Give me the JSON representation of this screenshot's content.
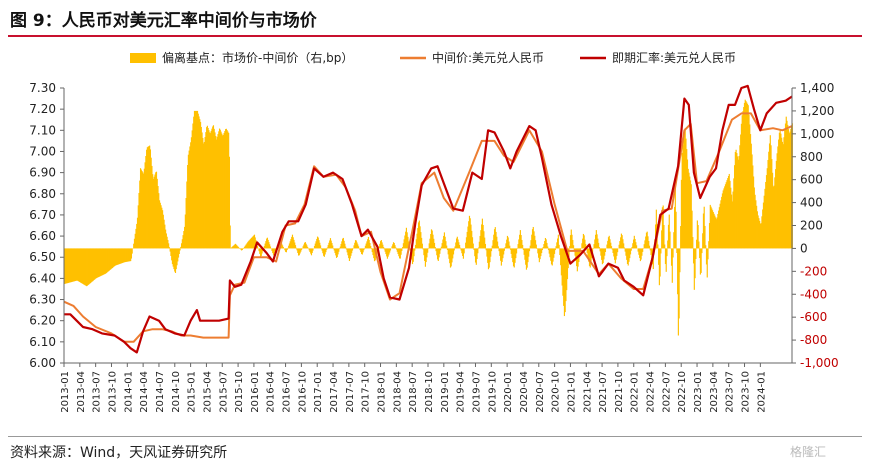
{
  "page": {
    "title": "图 9：人民币对美元汇率中间价与市场价",
    "source": "资料来源：Wind，天风证券研究所",
    "watermark": "格隆汇"
  },
  "colors": {
    "bar": "#FFC000",
    "mid": "#ED7D31",
    "spot": "#C00000",
    "neg_tick": "#C00000",
    "rule": "#C8102E"
  },
  "chart_data": {
    "type": "bar+line",
    "legend": [
      "偏离基点：市场价-中间价（右,bp）",
      "中间价:美元兑人民币",
      "即期汇率:美元兑人民币"
    ],
    "legend_position": "top",
    "y_left": {
      "min": 6.0,
      "max": 7.3,
      "ticks": [
        "6.00",
        "6.10",
        "6.20",
        "6.30",
        "6.40",
        "6.50",
        "6.60",
        "6.70",
        "6.80",
        "6.90",
        "7.00",
        "7.10",
        "7.20",
        "7.30"
      ]
    },
    "y_right": {
      "min": -1000,
      "max": 1400,
      "ticks": [
        "-1,000",
        "-800",
        "-600",
        "-400",
        "-200",
        "0",
        "200",
        "400",
        "600",
        "800",
        "1,000",
        "1,200",
        "1,400"
      ]
    },
    "x_ticks": [
      "2013-01",
      "2013-04",
      "2013-07",
      "2013-10",
      "2014-01",
      "2014-04",
      "2014-07",
      "2014-10",
      "2015-01",
      "2015-04",
      "2015-07",
      "2015-10",
      "2016-01",
      "2016-04",
      "2016-07",
      "2016-10",
      "2017-01",
      "2017-04",
      "2017-07",
      "2017-10",
      "2018-01",
      "2018-04",
      "2018-07",
      "2018-10",
      "2019-01",
      "2019-04",
      "2019-07",
      "2019-10",
      "2020-01",
      "2020-04",
      "2020-07",
      "2020-10",
      "2021-01",
      "2021-04",
      "2021-07",
      "2021-10",
      "2022-01",
      "2022-04",
      "2022-07",
      "2022-10",
      "2023-01",
      "2023-04",
      "2023-07",
      "2023-10",
      "2024-01"
    ],
    "x_range": [
      2013.0,
      2024.5
    ],
    "spot": [
      [
        2013.0,
        6.23
      ],
      [
        2013.1,
        6.23
      ],
      [
        2013.2,
        6.2
      ],
      [
        2013.3,
        6.17
      ],
      [
        2013.45,
        6.16
      ],
      [
        2013.6,
        6.14
      ],
      [
        2013.8,
        6.13
      ],
      [
        2013.95,
        6.1
      ],
      [
        2014.05,
        6.07
      ],
      [
        2014.15,
        6.05
      ],
      [
        2014.25,
        6.15
      ],
      [
        2014.35,
        6.22
      ],
      [
        2014.5,
        6.2
      ],
      [
        2014.6,
        6.16
      ],
      [
        2014.75,
        6.14
      ],
      [
        2014.9,
        6.13
      ],
      [
        2015.0,
        6.2
      ],
      [
        2015.1,
        6.25
      ],
      [
        2015.15,
        6.2
      ],
      [
        2015.3,
        6.2
      ],
      [
        2015.45,
        6.2
      ],
      [
        2015.6,
        6.21
      ],
      [
        2015.62,
        6.39
      ],
      [
        2015.7,
        6.36
      ],
      [
        2015.8,
        6.37
      ],
      [
        2015.95,
        6.48
      ],
      [
        2016.05,
        6.57
      ],
      [
        2016.2,
        6.52
      ],
      [
        2016.3,
        6.48
      ],
      [
        2016.45,
        6.62
      ],
      [
        2016.55,
        6.67
      ],
      [
        2016.7,
        6.67
      ],
      [
        2016.82,
        6.75
      ],
      [
        2016.95,
        6.92
      ],
      [
        2017.1,
        6.88
      ],
      [
        2017.25,
        6.9
      ],
      [
        2017.4,
        6.87
      ],
      [
        2017.55,
        6.75
      ],
      [
        2017.7,
        6.6
      ],
      [
        2017.8,
        6.63
      ],
      [
        2017.95,
        6.55
      ],
      [
        2018.05,
        6.4
      ],
      [
        2018.15,
        6.31
      ],
      [
        2018.3,
        6.3
      ],
      [
        2018.45,
        6.45
      ],
      [
        2018.55,
        6.66
      ],
      [
        2018.65,
        6.84
      ],
      [
        2018.8,
        6.92
      ],
      [
        2018.9,
        6.93
      ],
      [
        2019.0,
        6.85
      ],
      [
        2019.15,
        6.73
      ],
      [
        2019.3,
        6.72
      ],
      [
        2019.45,
        6.9
      ],
      [
        2019.6,
        6.87
      ],
      [
        2019.7,
        7.1
      ],
      [
        2019.8,
        7.09
      ],
      [
        2019.95,
        7.0
      ],
      [
        2020.05,
        6.92
      ],
      [
        2020.15,
        7.0
      ],
      [
        2020.35,
        7.12
      ],
      [
        2020.45,
        7.1
      ],
      [
        2020.55,
        6.97
      ],
      [
        2020.7,
        6.75
      ],
      [
        2020.85,
        6.6
      ],
      [
        2021.0,
        6.47
      ],
      [
        2021.15,
        6.51
      ],
      [
        2021.3,
        6.56
      ],
      [
        2021.45,
        6.41
      ],
      [
        2021.6,
        6.47
      ],
      [
        2021.75,
        6.45
      ],
      [
        2021.85,
        6.39
      ],
      [
        2022.0,
        6.36
      ],
      [
        2022.15,
        6.32
      ],
      [
        2022.3,
        6.5
      ],
      [
        2022.42,
        6.7
      ],
      [
        2022.55,
        6.73
      ],
      [
        2022.7,
        6.93
      ],
      [
        2022.8,
        7.25
      ],
      [
        2022.87,
        7.22
      ],
      [
        2022.95,
        6.9
      ],
      [
        2023.05,
        6.78
      ],
      [
        2023.2,
        6.88
      ],
      [
        2023.3,
        6.92
      ],
      [
        2023.4,
        7.1
      ],
      [
        2023.5,
        7.22
      ],
      [
        2023.6,
        7.22
      ],
      [
        2023.7,
        7.3
      ],
      [
        2023.8,
        7.31
      ],
      [
        2023.9,
        7.2
      ],
      [
        2024.0,
        7.1
      ],
      [
        2024.1,
        7.18
      ],
      [
        2024.25,
        7.23
      ],
      [
        2024.4,
        7.24
      ],
      [
        2024.5,
        7.26
      ]
    ],
    "mid": [
      [
        2013.0,
        6.29
      ],
      [
        2013.15,
        6.27
      ],
      [
        2013.3,
        6.22
      ],
      [
        2013.5,
        6.17
      ],
      [
        2013.75,
        6.14
      ],
      [
        2013.95,
        6.1
      ],
      [
        2014.1,
        6.1
      ],
      [
        2014.25,
        6.15
      ],
      [
        2014.4,
        6.16
      ],
      [
        2014.55,
        6.16
      ],
      [
        2014.7,
        6.15
      ],
      [
        2014.85,
        6.13
      ],
      [
        2015.0,
        6.13
      ],
      [
        2015.2,
        6.12
      ],
      [
        2015.4,
        6.12
      ],
      [
        2015.6,
        6.12
      ],
      [
        2015.62,
        6.32
      ],
      [
        2015.7,
        6.37
      ],
      [
        2015.85,
        6.38
      ],
      [
        2016.0,
        6.5
      ],
      [
        2016.2,
        6.5
      ],
      [
        2016.35,
        6.48
      ],
      [
        2016.5,
        6.65
      ],
      [
        2016.65,
        6.66
      ],
      [
        2016.8,
        6.75
      ],
      [
        2016.95,
        6.93
      ],
      [
        2017.1,
        6.88
      ],
      [
        2017.3,
        6.89
      ],
      [
        2017.45,
        6.83
      ],
      [
        2017.6,
        6.72
      ],
      [
        2017.7,
        6.6
      ],
      [
        2017.85,
        6.62
      ],
      [
        2018.0,
        6.43
      ],
      [
        2018.15,
        6.3
      ],
      [
        2018.3,
        6.33
      ],
      [
        2018.5,
        6.62
      ],
      [
        2018.65,
        6.85
      ],
      [
        2018.85,
        6.9
      ],
      [
        2019.0,
        6.78
      ],
      [
        2019.15,
        6.72
      ],
      [
        2019.4,
        6.9
      ],
      [
        2019.6,
        7.05
      ],
      [
        2019.8,
        7.05
      ],
      [
        2019.95,
        6.98
      ],
      [
        2020.1,
        6.95
      ],
      [
        2020.35,
        7.1
      ],
      [
        2020.55,
        7.0
      ],
      [
        2020.75,
        6.75
      ],
      [
        2020.95,
        6.53
      ],
      [
        2021.2,
        6.53
      ],
      [
        2021.45,
        6.42
      ],
      [
        2021.6,
        6.47
      ],
      [
        2021.8,
        6.4
      ],
      [
        2022.0,
        6.35
      ],
      [
        2022.15,
        6.35
      ],
      [
        2022.3,
        6.5
      ],
      [
        2022.45,
        6.72
      ],
      [
        2022.6,
        6.73
      ],
      [
        2022.8,
        7.1
      ],
      [
        2022.9,
        7.13
      ],
      [
        2023.0,
        6.85
      ],
      [
        2023.15,
        6.86
      ],
      [
        2023.35,
        7.0
      ],
      [
        2023.55,
        7.15
      ],
      [
        2023.7,
        7.18
      ],
      [
        2023.85,
        7.18
      ],
      [
        2024.0,
        7.1
      ],
      [
        2024.2,
        7.11
      ],
      [
        2024.35,
        7.1
      ],
      [
        2024.5,
        7.12
      ]
    ],
    "deviation_bp": [
      [
        2013.0,
        -310
      ],
      [
        2013.2,
        -280
      ],
      [
        2013.35,
        -330
      ],
      [
        2013.5,
        -260
      ],
      [
        2013.65,
        -220
      ],
      [
        2013.8,
        -150
      ],
      [
        2013.95,
        -120
      ],
      [
        2014.05,
        -110
      ],
      [
        2014.15,
        250
      ],
      [
        2014.2,
        700
      ],
      [
        2014.25,
        650
      ],
      [
        2014.3,
        880
      ],
      [
        2014.35,
        900
      ],
      [
        2014.4,
        600
      ],
      [
        2014.45,
        680
      ],
      [
        2014.5,
        420
      ],
      [
        2014.55,
        330
      ],
      [
        2014.6,
        150
      ],
      [
        2014.65,
        30
      ],
      [
        2014.7,
        -130
      ],
      [
        2014.75,
        -220
      ],
      [
        2014.8,
        -80
      ],
      [
        2014.85,
        50
      ],
      [
        2014.9,
        200
      ],
      [
        2014.95,
        800
      ],
      [
        2015.0,
        950
      ],
      [
        2015.05,
        1200
      ],
      [
        2015.1,
        1200
      ],
      [
        2015.15,
        1100
      ],
      [
        2015.2,
        900
      ],
      [
        2015.25,
        1080
      ],
      [
        2015.3,
        1000
      ],
      [
        2015.35,
        1080
      ],
      [
        2015.4,
        950
      ],
      [
        2015.45,
        1050
      ],
      [
        2015.5,
        980
      ],
      [
        2015.55,
        1050
      ],
      [
        2015.6,
        1000
      ],
      [
        2015.62,
        0
      ],
      [
        2015.7,
        40
      ],
      [
        2015.8,
        -20
      ],
      [
        2015.9,
        60
      ],
      [
        2016.0,
        120
      ],
      [
        2016.1,
        -80
      ],
      [
        2016.2,
        100
      ],
      [
        2016.3,
        -60
      ],
      [
        2016.4,
        80
      ],
      [
        2016.5,
        -40
      ],
      [
        2016.6,
        120
      ],
      [
        2016.7,
        -70
      ],
      [
        2016.8,
        60
      ],
      [
        2016.9,
        -60
      ],
      [
        2017.0,
        110
      ],
      [
        2017.1,
        -80
      ],
      [
        2017.2,
        90
      ],
      [
        2017.3,
        -90
      ],
      [
        2017.4,
        100
      ],
      [
        2017.5,
        -110
      ],
      [
        2017.6,
        80
      ],
      [
        2017.7,
        -60
      ],
      [
        2017.8,
        100
      ],
      [
        2017.9,
        -120
      ],
      [
        2018.0,
        80
      ],
      [
        2018.1,
        -90
      ],
      [
        2018.2,
        60
      ],
      [
        2018.3,
        -100
      ],
      [
        2018.4,
        180
      ],
      [
        2018.5,
        -150
      ],
      [
        2018.6,
        260
      ],
      [
        2018.7,
        -160
      ],
      [
        2018.8,
        180
      ],
      [
        2018.9,
        -120
      ],
      [
        2019.0,
        140
      ],
      [
        2019.1,
        -180
      ],
      [
        2019.2,
        110
      ],
      [
        2019.3,
        -90
      ],
      [
        2019.4,
        300
      ],
      [
        2019.5,
        -160
      ],
      [
        2019.6,
        260
      ],
      [
        2019.7,
        -200
      ],
      [
        2019.8,
        200
      ],
      [
        2019.9,
        -150
      ],
      [
        2020.0,
        120
      ],
      [
        2020.1,
        -180
      ],
      [
        2020.2,
        160
      ],
      [
        2020.3,
        -200
      ],
      [
        2020.4,
        200
      ],
      [
        2020.5,
        -120
      ],
      [
        2020.6,
        100
      ],
      [
        2020.7,
        -160
      ],
      [
        2020.8,
        120
      ],
      [
        2020.9,
        -620
      ],
      [
        2021.0,
        180
      ],
      [
        2021.1,
        -200
      ],
      [
        2021.2,
        140
      ],
      [
        2021.3,
        -180
      ],
      [
        2021.4,
        160
      ],
      [
        2021.5,
        -150
      ],
      [
        2021.6,
        120
      ],
      [
        2021.7,
        -130
      ],
      [
        2021.8,
        140
      ],
      [
        2021.9,
        -160
      ],
      [
        2022.0,
        110
      ],
      [
        2022.1,
        -120
      ],
      [
        2022.2,
        160
      ],
      [
        2022.3,
        -180
      ],
      [
        2022.35,
        360
      ],
      [
        2022.4,
        -380
      ],
      [
        2022.45,
        460
      ],
      [
        2022.5,
        -250
      ],
      [
        2022.55,
        320
      ],
      [
        2022.6,
        -300
      ],
      [
        2022.65,
        620
      ],
      [
        2022.7,
        -880
      ],
      [
        2022.75,
        800
      ],
      [
        2022.8,
        1080
      ],
      [
        2022.85,
        700
      ],
      [
        2022.9,
        560
      ],
      [
        2022.95,
        -400
      ],
      [
        2023.0,
        300
      ],
      [
        2023.05,
        -300
      ],
      [
        2023.1,
        420
      ],
      [
        2023.15,
        -280
      ],
      [
        2023.2,
        380
      ],
      [
        2023.3,
        250
      ],
      [
        2023.4,
        500
      ],
      [
        2023.5,
        650
      ],
      [
        2023.55,
        400
      ],
      [
        2023.6,
        880
      ],
      [
        2023.65,
        760
      ],
      [
        2023.7,
        1150
      ],
      [
        2023.75,
        1300
      ],
      [
        2023.8,
        1250
      ],
      [
        2023.85,
        900
      ],
      [
        2023.9,
        500
      ],
      [
        2023.95,
        300
      ],
      [
        2024.0,
        200
      ],
      [
        2024.05,
        450
      ],
      [
        2024.1,
        700
      ],
      [
        2024.15,
        1000
      ],
      [
        2024.2,
        500
      ],
      [
        2024.25,
        800
      ],
      [
        2024.3,
        1050
      ],
      [
        2024.35,
        900
      ],
      [
        2024.4,
        1150
      ],
      [
        2024.45,
        1000
      ],
      [
        2024.5,
        1100
      ]
    ]
  }
}
